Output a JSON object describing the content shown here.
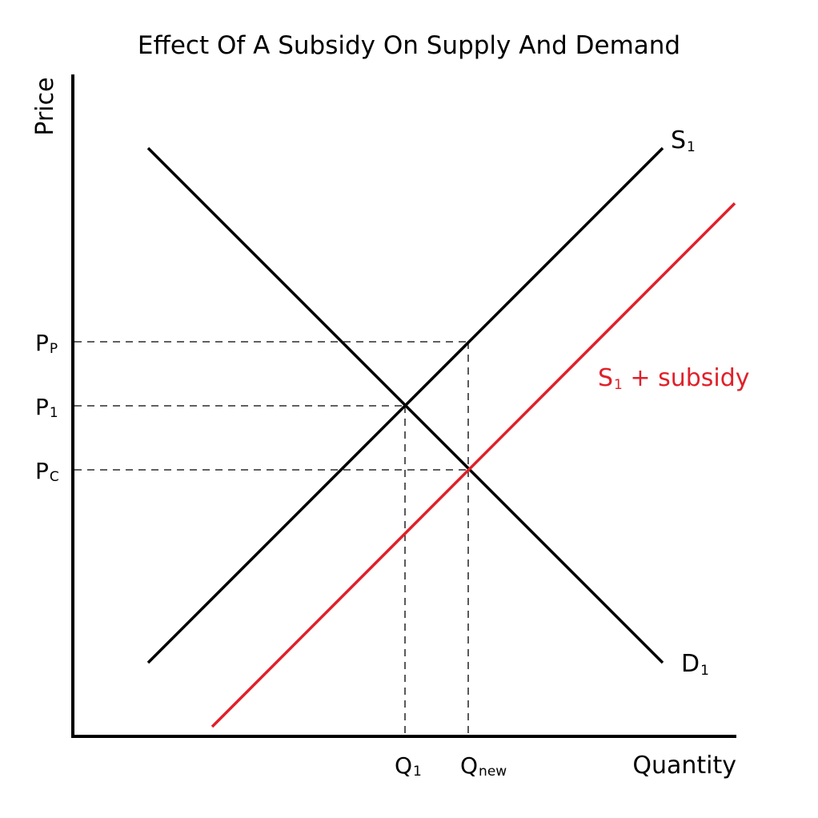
{
  "title": "Effect Of A Subsidy On Supply And Demand",
  "axes": {
    "x_label": "Quantity",
    "y_label": "Price"
  },
  "price_labels": {
    "pp": {
      "main": "P",
      "sub": "P"
    },
    "p1": {
      "main": "P",
      "sub": "1"
    },
    "pc": {
      "main": "P",
      "sub": "C"
    }
  },
  "quantity_labels": {
    "q1": {
      "main": "Q",
      "sub": "1"
    },
    "qnew": {
      "main": "Q",
      "sub": "new"
    }
  },
  "curves": {
    "supply": {
      "main": "S",
      "sub": "1"
    },
    "demand": {
      "main": "D",
      "sub": "1"
    },
    "subsidy": {
      "main": "S",
      "sub": "1",
      "suffix": " + subsidy"
    }
  },
  "colors": {
    "curve": "#000000",
    "subsidy_curve": "#e0202a",
    "guide": "#000000"
  }
}
